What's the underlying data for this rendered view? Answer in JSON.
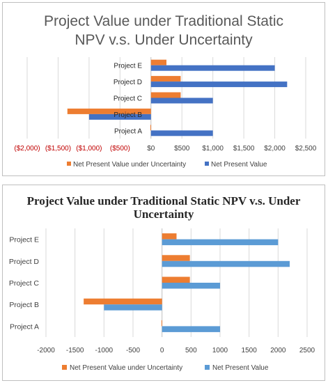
{
  "chart_data": [
    {
      "type": "bar",
      "orientation": "horizontal",
      "title": "Project Value under Traditional Static NPV v.s. Under Uncertainty",
      "title_lines": [
        "Project Value under Traditional Static",
        "NPV v.s. Under Uncertainty"
      ],
      "categories": [
        "Project A",
        "Project B",
        "Project C",
        "Project D",
        "Project E"
      ],
      "series": [
        {
          "name": "Net Present Value under Uncertainty",
          "color": "#ED7D31",
          "values": [
            -10,
            -1350,
            480,
            480,
            250
          ]
        },
        {
          "name": "Net Present Value",
          "color": "#4472C4",
          "values": [
            1000,
            -1000,
            1000,
            2200,
            2000
          ]
        }
      ],
      "xlim": [
        -2000,
        2500
      ],
      "ticks": [
        -2000,
        -1500,
        -1000,
        -500,
        0,
        500,
        1000,
        1500,
        2000,
        2500
      ],
      "tick_labels": [
        "($2,000)",
        "($1,500)",
        "($1,000)",
        "($500)",
        "$0",
        "$500",
        "$1,000",
        "$1,500",
        "$2,000",
        "$2,500"
      ],
      "negative_tick_color": "#C00000",
      "grid": true,
      "legend_position": "bottom"
    },
    {
      "type": "bar",
      "orientation": "horizontal",
      "title": "Project Value under Traditional Static NPV v.s. Under Uncertainty",
      "title_lines": [
        "Project Value under Traditional Static NPV v.s. Under",
        "Uncertainty"
      ],
      "categories": [
        "Project A",
        "Project B",
        "Project C",
        "Project D",
        "Project E"
      ],
      "series": [
        {
          "name": "Net Present Value under Uncertainty",
          "color": "#ED7D31",
          "values": [
            -10,
            -1350,
            480,
            480,
            250
          ]
        },
        {
          "name": "Net Present Value",
          "color": "#5B9BD5",
          "values": [
            1000,
            -1000,
            1000,
            2200,
            2000
          ]
        }
      ],
      "xlim": [
        -2000,
        2500
      ],
      "ticks": [
        -2000,
        -1500,
        -1000,
        -500,
        0,
        500,
        1000,
        1500,
        2000,
        2500
      ],
      "tick_labels": [
        "-2000",
        "-1500",
        "-1000",
        "-500",
        "0",
        "500",
        "1000",
        "1500",
        "2000",
        "2500"
      ],
      "grid": true,
      "legend_position": "bottom"
    }
  ]
}
